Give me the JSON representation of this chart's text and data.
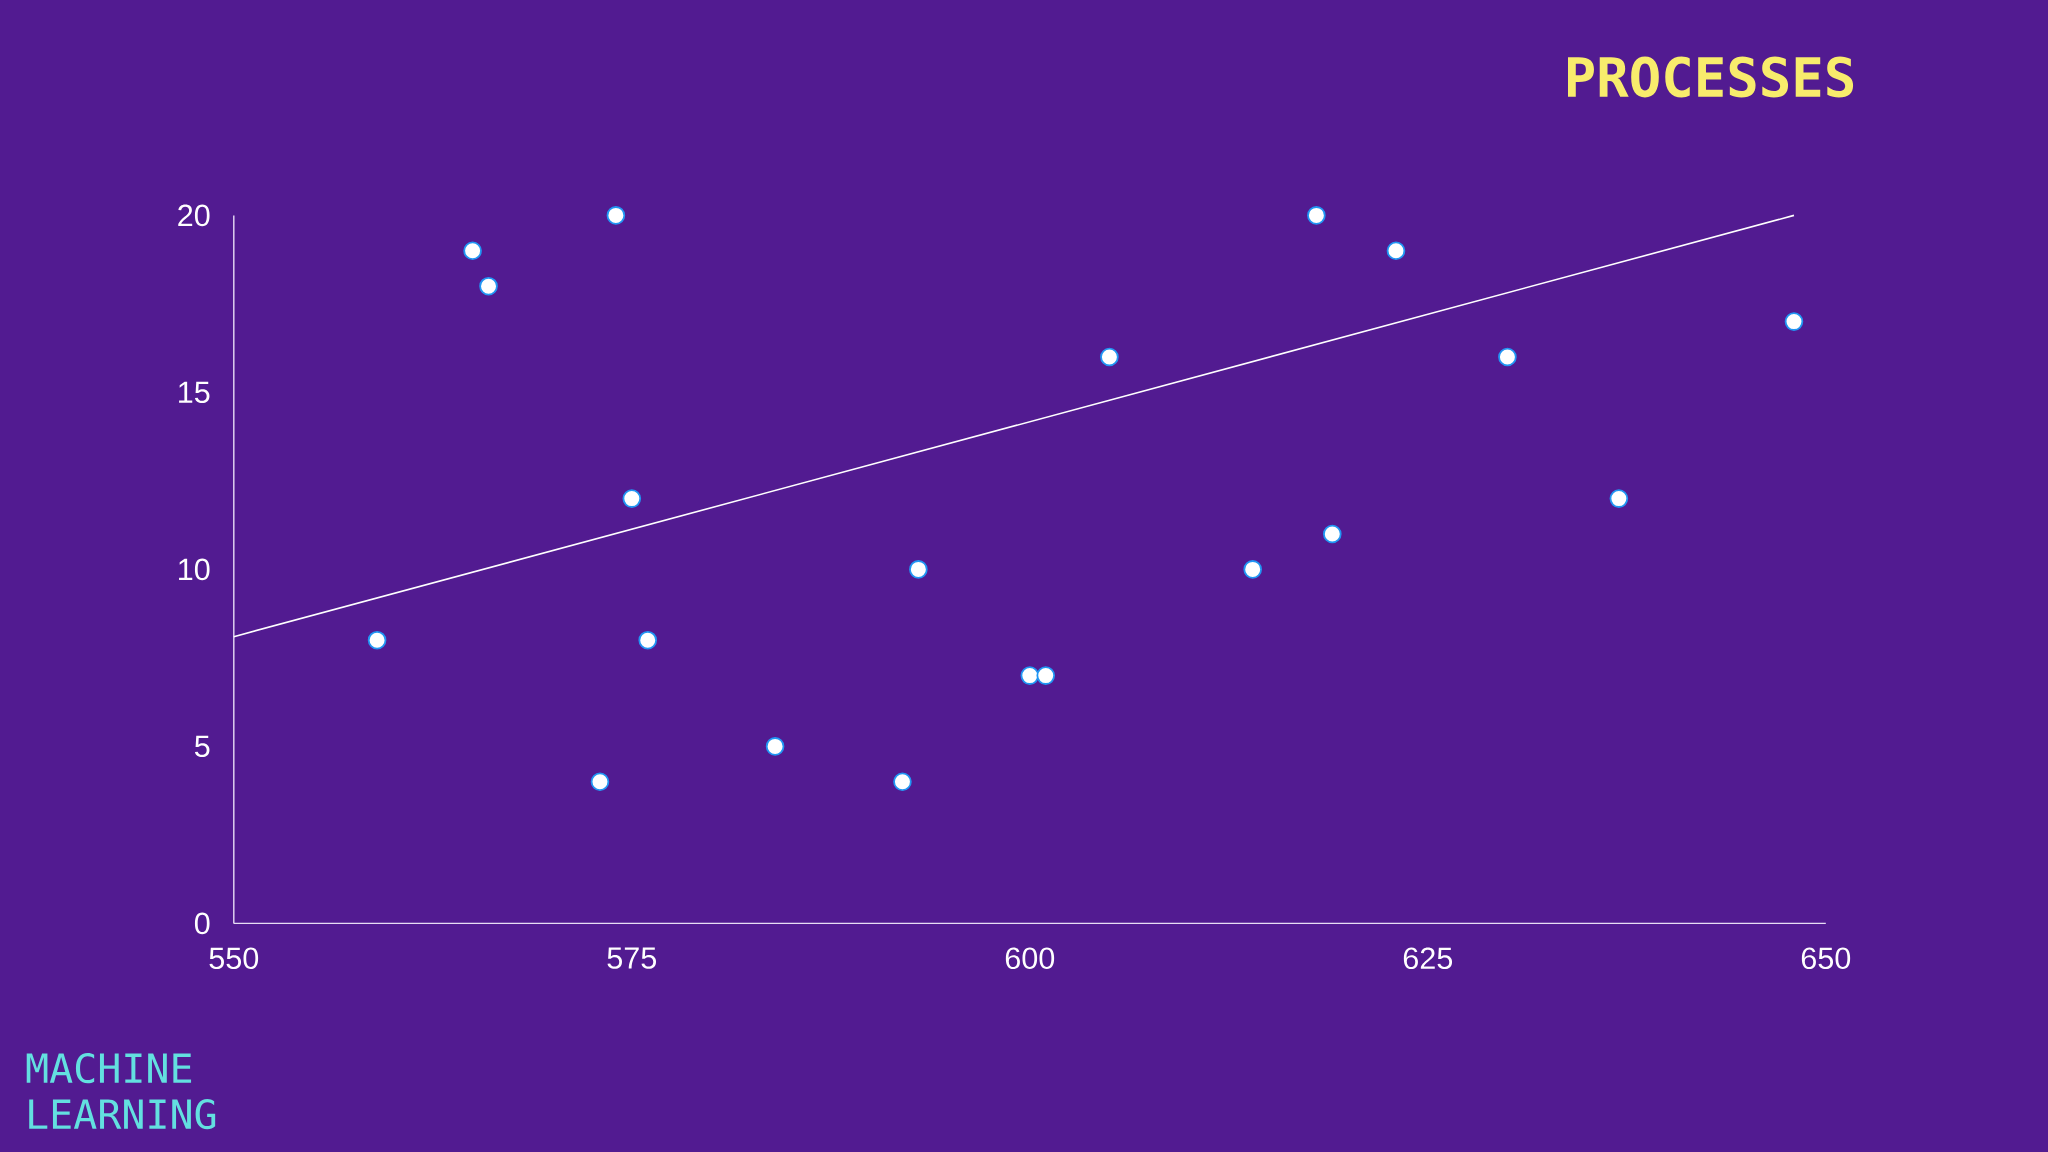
{
  "chart_data": {
    "type": "scatter",
    "annotations": [
      "PROCESSES",
      "MACHINE LEARNING"
    ],
    "xlim": [
      550,
      650
    ],
    "ylim": [
      0,
      20
    ],
    "xticks": [
      550,
      575,
      600,
      625,
      650
    ],
    "yticks": [
      0,
      5,
      10,
      15,
      20
    ],
    "marker": "circle",
    "series": [
      {
        "color": "#ffffff",
        "x": [
          559,
          565,
          566,
          573,
          574,
          575,
          576,
          584,
          592,
          593,
          600,
          601,
          605,
          614,
          618,
          619,
          623,
          630,
          637,
          648
        ],
        "values": [
          8,
          19,
          18,
          4,
          20,
          12,
          8,
          5,
          4,
          10,
          7,
          7,
          16,
          10,
          20,
          11,
          19,
          16,
          12,
          17
        ]
      },
      {
        "type": "line",
        "color": "#ffffff",
        "marker": "none",
        "line_style": "solid",
        "x": [
          550,
          648
        ],
        "values": [
          8.1,
          20
        ]
      }
    ]
  }
}
